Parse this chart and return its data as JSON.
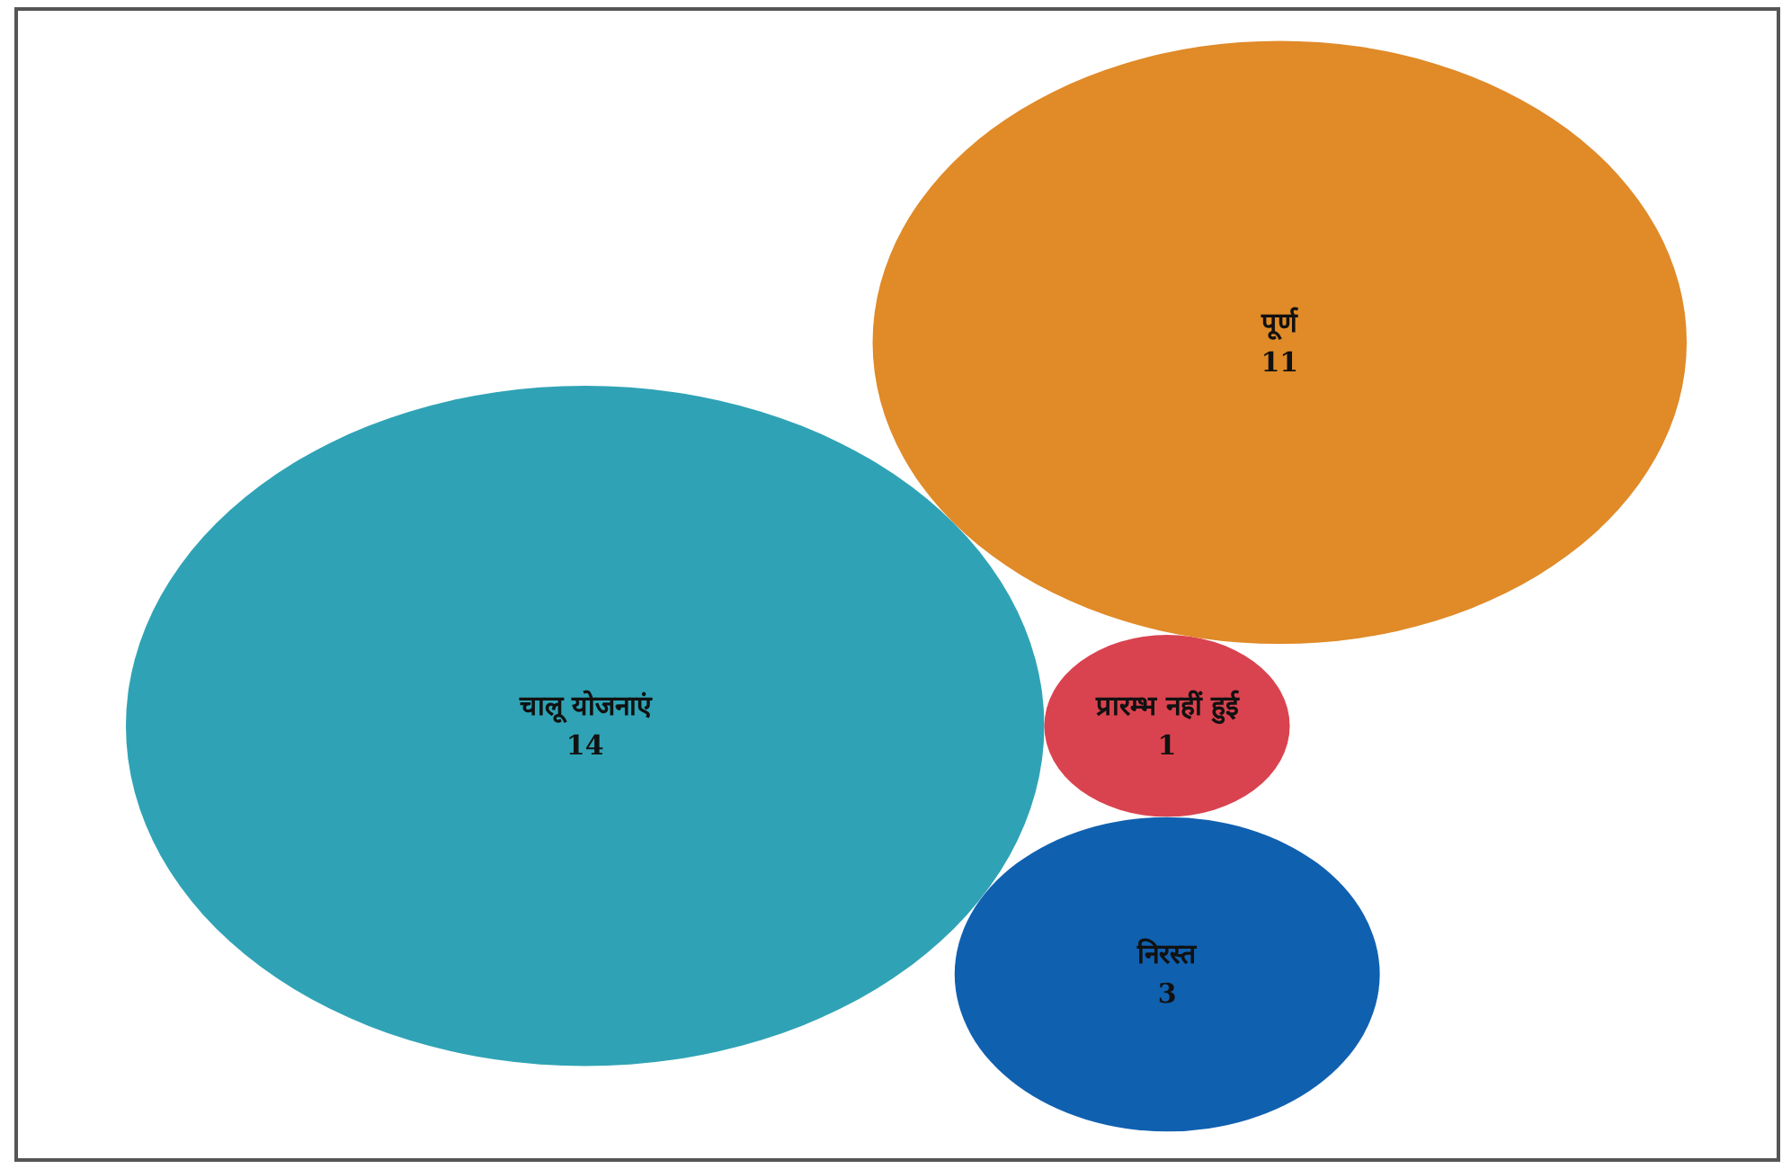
{
  "chart_data": {
    "type": "other",
    "categories": [
      "चालू योजनाएं",
      "प्रारम्भ नहीं हुई",
      "निरस्त",
      "पूर्ण"
    ],
    "values": [
      14,
      1,
      3,
      11
    ],
    "colors": [
      "#2fa3b5",
      "#d9434f",
      "#1060b0",
      "#e08a28"
    ],
    "data_labels": true
  }
}
